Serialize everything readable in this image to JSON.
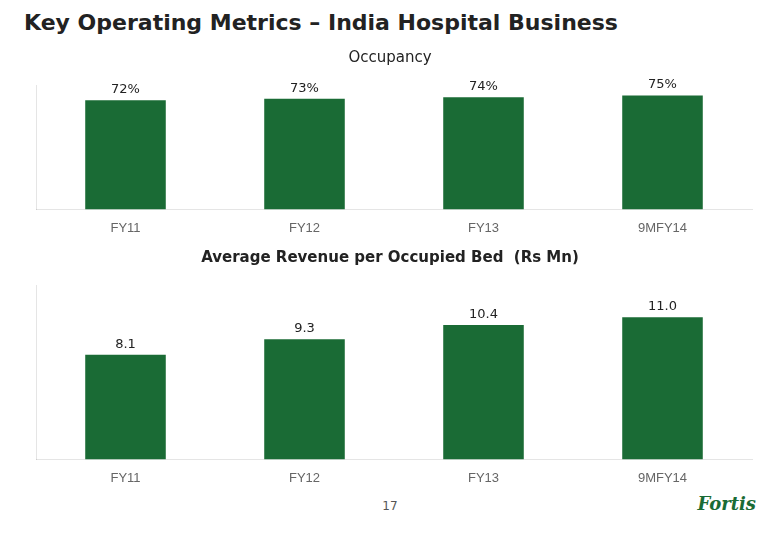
{
  "title": "Key Operating Metrics – India Hospital Business",
  "annotations": [
    {
      "text": "17"
    },
    {
      "text": "Fortis",
      "color": "#1a6b35"
    }
  ],
  "chart_data": [
    {
      "type": "bar",
      "title": "Occupancy",
      "categories": [
        "FY11",
        "FY12",
        "FY13",
        "9MFY14"
      ],
      "values": [
        72,
        73,
        74,
        75
      ],
      "value_labels": [
        "72%",
        "73%",
        "74%",
        "75%"
      ],
      "color": "#1a6b35",
      "ylim": [
        0,
        82
      ],
      "yticks": [],
      "grid": false,
      "data_labels": true,
      "tick_labels": "x"
    },
    {
      "type": "bar",
      "title": "Average Revenue per Occupied Bed  (Rs Mn)",
      "categories": [
        "FY11",
        "FY12",
        "FY13",
        "9MFY14"
      ],
      "values": [
        8.1,
        9.3,
        10.4,
        11.0
      ],
      "value_labels": [
        "8.1",
        "9.3",
        "10.4",
        "11.0"
      ],
      "color": "#1a6b35",
      "ylim": [
        0,
        13.5
      ],
      "yticks": [],
      "grid": false,
      "data_labels": true,
      "tick_labels": "x"
    }
  ]
}
